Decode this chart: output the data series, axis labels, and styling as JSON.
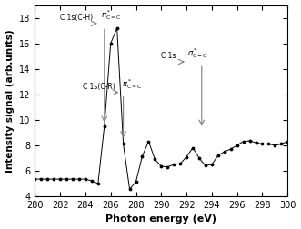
{
  "x_data": [
    280.0,
    280.5,
    281.0,
    281.5,
    282.0,
    282.5,
    283.0,
    283.5,
    284.0,
    284.5,
    285.0,
    285.5,
    286.0,
    286.5,
    287.0,
    287.5,
    288.0,
    288.5,
    289.0,
    289.5,
    290.0,
    290.5,
    291.0,
    291.5,
    292.0,
    292.5,
    293.0,
    293.5,
    294.0,
    294.5,
    295.0,
    295.5,
    296.0,
    296.5,
    297.0,
    297.5,
    298.0,
    298.5,
    299.0,
    299.5,
    300.0
  ],
  "y_data": [
    5.35,
    5.35,
    5.35,
    5.35,
    5.35,
    5.35,
    5.35,
    5.35,
    5.35,
    5.2,
    5.0,
    9.5,
    16.0,
    17.2,
    8.1,
    4.55,
    5.15,
    7.15,
    8.3,
    6.9,
    6.35,
    6.3,
    6.5,
    6.55,
    7.1,
    7.8,
    7.0,
    6.4,
    6.5,
    7.2,
    7.5,
    7.7,
    8.0,
    8.3,
    8.35,
    8.2,
    8.1,
    8.1,
    8.0,
    8.1,
    8.3
  ],
  "xlabel": "Photon energy (eV)",
  "ylabel": "Intensity signal (arb.units)",
  "xlim": [
    280,
    300
  ],
  "ylim": [
    4,
    19
  ],
  "yticks": [
    4,
    6,
    8,
    10,
    12,
    14,
    16,
    18
  ],
  "xticks": [
    280,
    282,
    284,
    286,
    288,
    290,
    292,
    294,
    296,
    298,
    300
  ],
  "peak1_x": 285.5,
  "peak1_y": 17.2,
  "peak2_x": 287.0,
  "peak2_y": 8.3,
  "peak3_x": 293.2,
  "peak3_y": 9.2,
  "gray_color": "#808080"
}
